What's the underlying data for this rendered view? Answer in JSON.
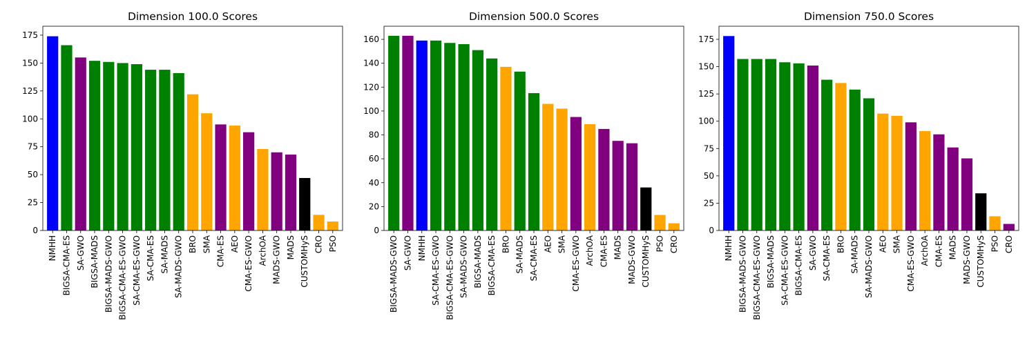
{
  "colors": {
    "blue": "#0000ff",
    "green": "#008000",
    "purple": "#800080",
    "orange": "#ffa500",
    "black": "#000000"
  },
  "chart_data": [
    {
      "type": "bar",
      "title": "Dimension 100.0 Scores",
      "xlabel": "",
      "ylabel": "",
      "ylim": [
        0,
        183
      ],
      "yticks": [
        0,
        25,
        50,
        75,
        100,
        125,
        150,
        175
      ],
      "grid": false,
      "categories": [
        "NMHH",
        "BIGSA-CMA-ES",
        "SA-GWO",
        "BIGSA-MADS",
        "BIGSA-MADS-GWO",
        "BIGSA-CMA-ES-GWO",
        "SA-CMA-ES-GWO",
        "SA-CMA-ES",
        "SA-MADS",
        "SA-MADS-GWO",
        "BRO",
        "SMA",
        "CMA-ES",
        "AEO",
        "CMA-ES-GWO",
        "ArchOA",
        "MADS-GWO",
        "MADS",
        "CUSTOMHyS",
        "CRO",
        "PSO"
      ],
      "values": [
        174,
        166,
        155,
        152,
        151,
        150,
        149,
        144,
        144,
        141,
        122,
        105,
        95,
        94,
        88,
        73,
        70,
        68,
        47,
        14,
        8
      ],
      "colors": [
        "blue",
        "green",
        "purple",
        "green",
        "green",
        "green",
        "green",
        "green",
        "green",
        "green",
        "orange",
        "orange",
        "purple",
        "orange",
        "purple",
        "orange",
        "purple",
        "purple",
        "black",
        "orange",
        "orange"
      ]
    },
    {
      "type": "bar",
      "title": "Dimension 500.0 Scores",
      "xlabel": "",
      "ylabel": "",
      "ylim": [
        0,
        171
      ],
      "yticks": [
        0,
        20,
        40,
        60,
        80,
        100,
        120,
        140,
        160
      ],
      "grid": false,
      "categories": [
        "BIGSA-MADS-GWO",
        "SA-GWO",
        "NMHH",
        "SA-CMA-ES-GWO",
        "BIGSA-CMA-ES-GWO",
        "SA-MADS-GWO",
        "BIGSA-MADS",
        "BIGSA-CMA-ES",
        "BRO",
        "SA-MADS",
        "SA-CMA-ES",
        "AEO",
        "SMA",
        "CMA-ES-GWO",
        "ArchOA",
        "CMA-ES",
        "MADS",
        "MADS-GWO",
        "CUSTOMHyS",
        "PSO",
        "CRO"
      ],
      "values": [
        163,
        163,
        159,
        159,
        157,
        156,
        151,
        144,
        137,
        133,
        115,
        106,
        102,
        95,
        89,
        85,
        75,
        73,
        36,
        13,
        6
      ],
      "colors": [
        "green",
        "purple",
        "blue",
        "green",
        "green",
        "green",
        "green",
        "green",
        "orange",
        "green",
        "green",
        "orange",
        "orange",
        "purple",
        "orange",
        "purple",
        "purple",
        "purple",
        "black",
        "orange",
        "orange"
      ]
    },
    {
      "type": "bar",
      "title": "Dimension 750.0 Scores",
      "xlabel": "",
      "ylabel": "",
      "ylim": [
        0,
        187
      ],
      "yticks": [
        0,
        25,
        50,
        75,
        100,
        125,
        150,
        175
      ],
      "grid": false,
      "categories": [
        "NMHH",
        "BIGSA-MADS-GWO",
        "BIGSA-CMA-ES-GWO",
        "BIGSA-MADS",
        "SA-CMA-ES-GWO",
        "BIGSA-CMA-ES",
        "SA-GWO",
        "SA-CMA-ES",
        "BRO",
        "SA-MADS",
        "SA-MADS-GWO",
        "AEO",
        "SMA",
        "CMA-ES-GWO",
        "ArchOA",
        "CMA-ES",
        "MADS",
        "MADS-GWO",
        "CUSTOMHyS",
        "PSO",
        "CRO"
      ],
      "values": [
        178,
        157,
        157,
        157,
        154,
        153,
        151,
        138,
        135,
        129,
        121,
        107,
        105,
        99,
        91,
        88,
        76,
        66,
        34,
        13,
        6
      ],
      "colors": [
        "blue",
        "green",
        "green",
        "green",
        "green",
        "green",
        "purple",
        "green",
        "orange",
        "green",
        "green",
        "orange",
        "orange",
        "purple",
        "orange",
        "purple",
        "purple",
        "purple",
        "black",
        "orange",
        "purple"
      ]
    }
  ]
}
